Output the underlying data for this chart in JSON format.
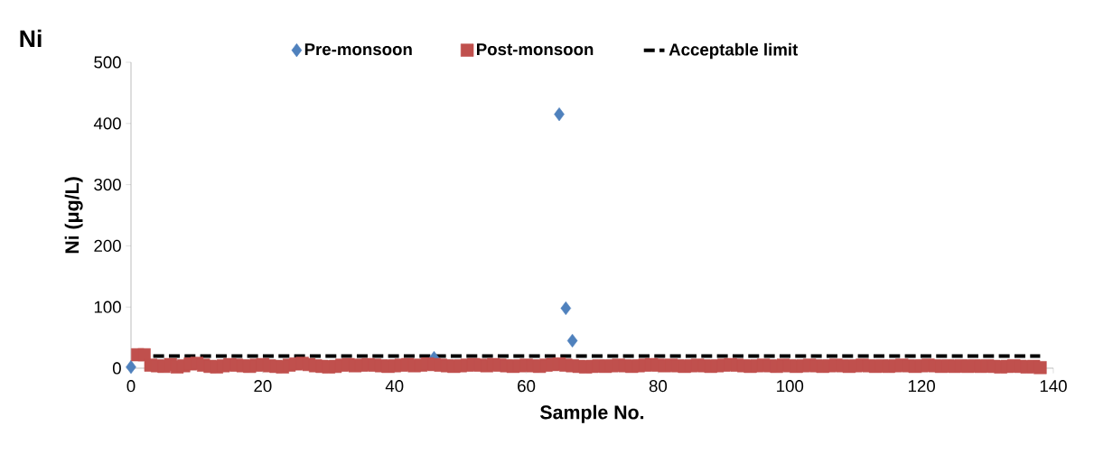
{
  "chart_data": {
    "type": "scatter",
    "title": "Ni",
    "xlabel": "Sample No.",
    "ylabel": "Ni (μg/L)",
    "xlim": [
      0,
      140
    ],
    "xticks": [
      0,
      20,
      40,
      60,
      80,
      100,
      120,
      140
    ],
    "ylim": [
      0,
      500
    ],
    "yticks": [
      0,
      100,
      200,
      300,
      400,
      500
    ],
    "grid": false,
    "legend": "top",
    "series": [
      {
        "name": "Pre-monsoon",
        "color": "#4f81bd",
        "marker": "diamond",
        "x": [
          0,
          46,
          65,
          66,
          67
        ],
        "values": [
          2,
          17,
          415,
          98,
          45
        ]
      },
      {
        "name": "Post-monsoon",
        "color": "#c0504d",
        "marker": "square",
        "x": [
          1,
          2,
          3,
          4,
          5,
          6,
          7,
          8,
          9,
          10,
          11,
          12,
          13,
          14,
          15,
          16,
          17,
          18,
          19,
          20,
          21,
          22,
          23,
          24,
          25,
          26,
          27,
          28,
          29,
          30,
          31,
          32,
          33,
          34,
          35,
          36,
          37,
          38,
          39,
          40,
          41,
          42,
          43,
          44,
          45,
          46,
          47,
          48,
          49,
          50,
          51,
          52,
          53,
          54,
          55,
          56,
          57,
          58,
          59,
          60,
          61,
          62,
          63,
          64,
          65,
          66,
          67,
          68,
          69,
          70,
          71,
          72,
          73,
          74,
          75,
          76,
          77,
          78,
          79,
          80,
          81,
          82,
          83,
          84,
          85,
          86,
          87,
          88,
          89,
          90,
          91,
          92,
          93,
          94,
          95,
          96,
          97,
          98,
          99,
          100,
          101,
          102,
          103,
          104,
          105,
          106,
          107,
          108,
          109,
          110,
          111,
          112,
          113,
          114,
          115,
          116,
          117,
          118,
          119,
          120,
          121,
          122,
          123,
          124,
          125,
          126,
          127,
          128,
          129,
          130,
          131,
          132,
          133,
          134,
          135,
          136,
          137,
          138
        ],
        "values": [
          22,
          22,
          5,
          4,
          3,
          6,
          2,
          4,
          7,
          8,
          5,
          3,
          2,
          4,
          6,
          5,
          4,
          3,
          5,
          6,
          4,
          3,
          2,
          5,
          7,
          8,
          6,
          4,
          3,
          2,
          3,
          5,
          6,
          4,
          5,
          6,
          5,
          4,
          3,
          4,
          5,
          6,
          4,
          5,
          7,
          6,
          5,
          4,
          3,
          4,
          5,
          6,
          5,
          4,
          6,
          5,
          4,
          3,
          4,
          5,
          4,
          3,
          5,
          6,
          7,
          5,
          4,
          3,
          2,
          3,
          4,
          3,
          4,
          5,
          4,
          3,
          4,
          5,
          6,
          5,
          4,
          5,
          4,
          3,
          4,
          5,
          4,
          3,
          4,
          5,
          6,
          5,
          4,
          3,
          4,
          5,
          4,
          3,
          5,
          4,
          3,
          4,
          5,
          4,
          3,
          4,
          5,
          4,
          3,
          4,
          5,
          4,
          3,
          4,
          3,
          4,
          5,
          4,
          3,
          4,
          5,
          4,
          3,
          4,
          3,
          4,
          3,
          4,
          3,
          4,
          3,
          2,
          3,
          4,
          3,
          2,
          3,
          1
        ]
      }
    ],
    "ref_lines": [
      {
        "axis": "y",
        "value": 20,
        "label": "Acceptable limit",
        "color": "#000000",
        "line_style": "dashed"
      }
    ]
  }
}
